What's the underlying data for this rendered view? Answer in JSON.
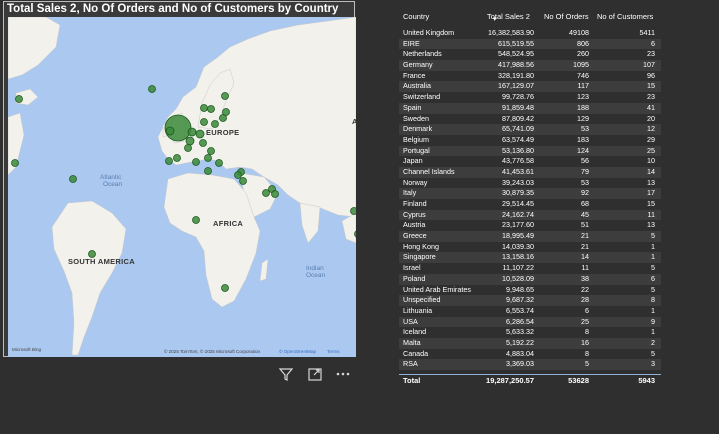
{
  "map": {
    "title": "Total Sales 2, No Of Orders and No of Customers by Country",
    "ocean_atlantic_1": "Atlantic",
    "ocean_atlantic_2": "Ocean",
    "ocean_indian_1": "Indian",
    "ocean_indian_2": "Ocean",
    "label_europe": "EUROPE",
    "label_africa": "AFRICA",
    "label_south_america": "SOUTH AMERICA",
    "label_edge": "A",
    "bing_logo": "Microsoft Bing",
    "copyright_text": "© 2025 TomTom, © 2025 Microsoft Corporation",
    "copyright_link": "© OpenStreetMap",
    "terms_link": "Terms",
    "bubble_color": "#3a8a3a",
    "land_color": "#f2f1ec",
    "water_color": "#aac8f0"
  },
  "visual_header": {
    "filter_icon": "filter-icon",
    "focus_icon": "focus-mode-icon",
    "more_icon": "more-options-icon"
  },
  "table": {
    "headers": {
      "country": "Country",
      "sales": "Total Sales 2",
      "orders": "No Of Orders",
      "customers": "No of Customers"
    },
    "rows": [
      {
        "country": "United Kingdom",
        "sales": "16,382,583.90",
        "orders": "49108",
        "customers": "5411"
      },
      {
        "country": "EIRE",
        "sales": "615,519.55",
        "orders": "806",
        "customers": "6"
      },
      {
        "country": "Netherlands",
        "sales": "548,524.95",
        "orders": "260",
        "customers": "23"
      },
      {
        "country": "Germany",
        "sales": "417,988.56",
        "orders": "1095",
        "customers": "107"
      },
      {
        "country": "France",
        "sales": "328,191.80",
        "orders": "746",
        "customers": "96"
      },
      {
        "country": "Australia",
        "sales": "167,129.07",
        "orders": "117",
        "customers": "15"
      },
      {
        "country": "Switzerland",
        "sales": "99,728.76",
        "orders": "123",
        "customers": "23"
      },
      {
        "country": "Spain",
        "sales": "91,859.48",
        "orders": "188",
        "customers": "41"
      },
      {
        "country": "Sweden",
        "sales": "87,809.42",
        "orders": "129",
        "customers": "20"
      },
      {
        "country": "Denmark",
        "sales": "65,741.09",
        "orders": "53",
        "customers": "12"
      },
      {
        "country": "Belgium",
        "sales": "63,574.49",
        "orders": "183",
        "customers": "29"
      },
      {
        "country": "Portugal",
        "sales": "53,136.80",
        "orders": "124",
        "customers": "25"
      },
      {
        "country": "Japan",
        "sales": "43,776.58",
        "orders": "56",
        "customers": "10"
      },
      {
        "country": "Channel Islands",
        "sales": "41,453.61",
        "orders": "79",
        "customers": "14"
      },
      {
        "country": "Norway",
        "sales": "39,243.03",
        "orders": "53",
        "customers": "13"
      },
      {
        "country": "Italy",
        "sales": "30,879.35",
        "orders": "92",
        "customers": "17"
      },
      {
        "country": "Finland",
        "sales": "29,514.45",
        "orders": "68",
        "customers": "15"
      },
      {
        "country": "Cyprus",
        "sales": "24,162.74",
        "orders": "45",
        "customers": "11"
      },
      {
        "country": "Austria",
        "sales": "23,177.60",
        "orders": "51",
        "customers": "13"
      },
      {
        "country": "Greece",
        "sales": "18,995.49",
        "orders": "21",
        "customers": "5"
      },
      {
        "country": "Hong Kong",
        "sales": "14,039.30",
        "orders": "21",
        "customers": "1"
      },
      {
        "country": "Singapore",
        "sales": "13,158.16",
        "orders": "14",
        "customers": "1"
      },
      {
        "country": "Israel",
        "sales": "11,107.22",
        "orders": "11",
        "customers": "5"
      },
      {
        "country": "Poland",
        "sales": "10,528.09",
        "orders": "38",
        "customers": "6"
      },
      {
        "country": "United Arab Emirates",
        "sales": "9,948.65",
        "orders": "22",
        "customers": "5"
      },
      {
        "country": "Unspecified",
        "sales": "9,687.32",
        "orders": "28",
        "customers": "8"
      },
      {
        "country": "Lithuania",
        "sales": "6,553.74",
        "orders": "6",
        "customers": "1"
      },
      {
        "country": "USA",
        "sales": "6,286.54",
        "orders": "25",
        "customers": "9"
      },
      {
        "country": "Iceland",
        "sales": "5,633.32",
        "orders": "8",
        "customers": "1"
      },
      {
        "country": "Malta",
        "sales": "5,192.22",
        "orders": "16",
        "customers": "2"
      },
      {
        "country": "Canada",
        "sales": "4,883.04",
        "orders": "8",
        "customers": "5"
      },
      {
        "country": "RSA",
        "sales": "3,369.03",
        "orders": "5",
        "customers": "3"
      }
    ],
    "total": {
      "label": "Total",
      "sales": "19,287,250.57",
      "orders": "53628",
      "customers": "5943"
    }
  }
}
